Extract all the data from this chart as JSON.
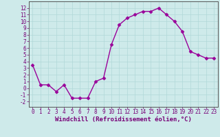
{
  "x": [
    0,
    1,
    2,
    3,
    4,
    5,
    6,
    7,
    8,
    9,
    10,
    11,
    12,
    13,
    14,
    15,
    16,
    17,
    18,
    19,
    20,
    21,
    22,
    23
  ],
  "y": [
    3.5,
    0.5,
    0.5,
    -0.5,
    0.5,
    -1.5,
    -1.5,
    -1.5,
    1.0,
    1.5,
    6.5,
    9.5,
    10.5,
    11.0,
    11.5,
    11.5,
    12.0,
    11.0,
    10.0,
    8.5,
    5.5,
    5.0,
    4.5,
    4.5
  ],
  "line_color": "#990099",
  "marker": "D",
  "markersize": 2.5,
  "linewidth": 1.0,
  "xlabel": "Windchill (Refroidissement éolien,°C)",
  "xlabel_fontsize": 6.5,
  "ylabel_ticks": [
    -2,
    -1,
    0,
    1,
    2,
    3,
    4,
    5,
    6,
    7,
    8,
    9,
    10,
    11,
    12
  ],
  "xtick_labels": [
    "0",
    "1",
    "2",
    "3",
    "4",
    "5",
    "6",
    "7",
    "8",
    "9",
    "10",
    "11",
    "12",
    "13",
    "14",
    "15",
    "16",
    "17",
    "18",
    "19",
    "20",
    "21",
    "22",
    "23"
  ],
  "ylim": [
    -2.8,
    13.0
  ],
  "xlim": [
    -0.5,
    23.5
  ],
  "background_color": "#ceeaea",
  "grid_color": "#b0d8d8",
  "tick_fontsize": 5.5,
  "xlabel_color": "#770077",
  "tick_color": "#770077"
}
